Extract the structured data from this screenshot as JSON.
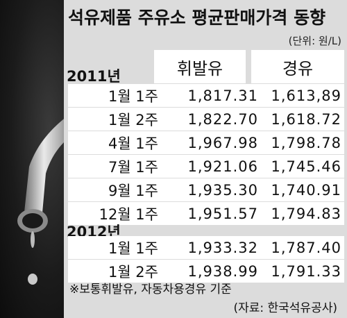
{
  "title": "석유제품 주유소 평균판매가격 동향",
  "unit": "(단위: 원/L)",
  "columns": [
    "휘발유",
    "경유"
  ],
  "groups": [
    {
      "year": "2011년",
      "rows": [
        {
          "label": "1월  1주",
          "gasoline": "1,817.31",
          "diesel": "1,613,89"
        },
        {
          "label": "1월  2주",
          "gasoline": "1,822.70",
          "diesel": "1,618.72"
        },
        {
          "label": "4월  1주",
          "gasoline": "1,967.98",
          "diesel": "1,798.78"
        },
        {
          "label": "7월  1주",
          "gasoline": "1,921.06",
          "diesel": "1,745.46"
        },
        {
          "label": "9월  1주",
          "gasoline": "1,935.30",
          "diesel": "1,740.91"
        },
        {
          "label": "12월  1주",
          "gasoline": "1,951.57",
          "diesel": "1,794.83"
        }
      ]
    },
    {
      "year": "2012년",
      "rows": [
        {
          "label": "1월  1주",
          "gasoline": "1,933.32",
          "diesel": "1,787.40"
        },
        {
          "label": "1월  2주",
          "gasoline": "1,938.99",
          "diesel": "1,791.33"
        }
      ]
    }
  ],
  "note": "※보통휘발유, 자동차용경유  기준",
  "source": "(자료: 한국석유공사)",
  "colors": {
    "panel": "#dcdcdc",
    "cell": "#ffffff",
    "photo": "#1b1b1b"
  }
}
